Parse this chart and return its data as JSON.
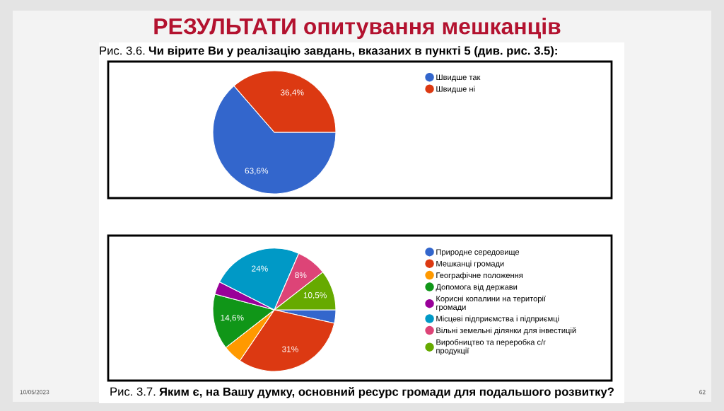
{
  "chart_data": [
    {
      "type": "pie",
      "title": "Рис. 3.6. Чи вірите Ви у реалізацію завдань, вказаних в пункті 5 (див. рис. 3.5):",
      "categories": [
        "Швидше так",
        "Швидше ні"
      ],
      "values": [
        63.6,
        36.4
      ],
      "colors": [
        "#3366cc",
        "#dc3912"
      ],
      "value_labels": [
        "63,6%",
        "36,4%"
      ],
      "legend": "right",
      "annotations": [
        "РЕЗУЛЬТАТИ опитування мешканців",
        "10/05/2023",
        "62"
      ]
    },
    {
      "type": "pie",
      "title": "Рис. 3.7. Яким є, на Вашу думку, основний ресурс громади для подальшого розвитку?",
      "categories": [
        "Природне середовище",
        "Мешканці громади",
        "Географічне положення",
        "Допомога від держави",
        "Корисні копалини на території\nгромади",
        "Місцеві підприємства і підприємці",
        "Вільні земельні ділянки для інвестицій",
        "Виробництво та переробка с/г\nпродукції"
      ],
      "values": [
        3.5,
        31,
        5,
        14.6,
        3.4,
        24,
        8,
        10.5
      ],
      "colors": [
        "#3366cc",
        "#dc3912",
        "#ff9900",
        "#109618",
        "#990099",
        "#0099c6",
        "#dd4477",
        "#66aa00"
      ],
      "value_labels": [
        null,
        "31%",
        null,
        "14,6%",
        null,
        "24%",
        "8%",
        "10,5%"
      ],
      "legend": "right"
    }
  ]
}
